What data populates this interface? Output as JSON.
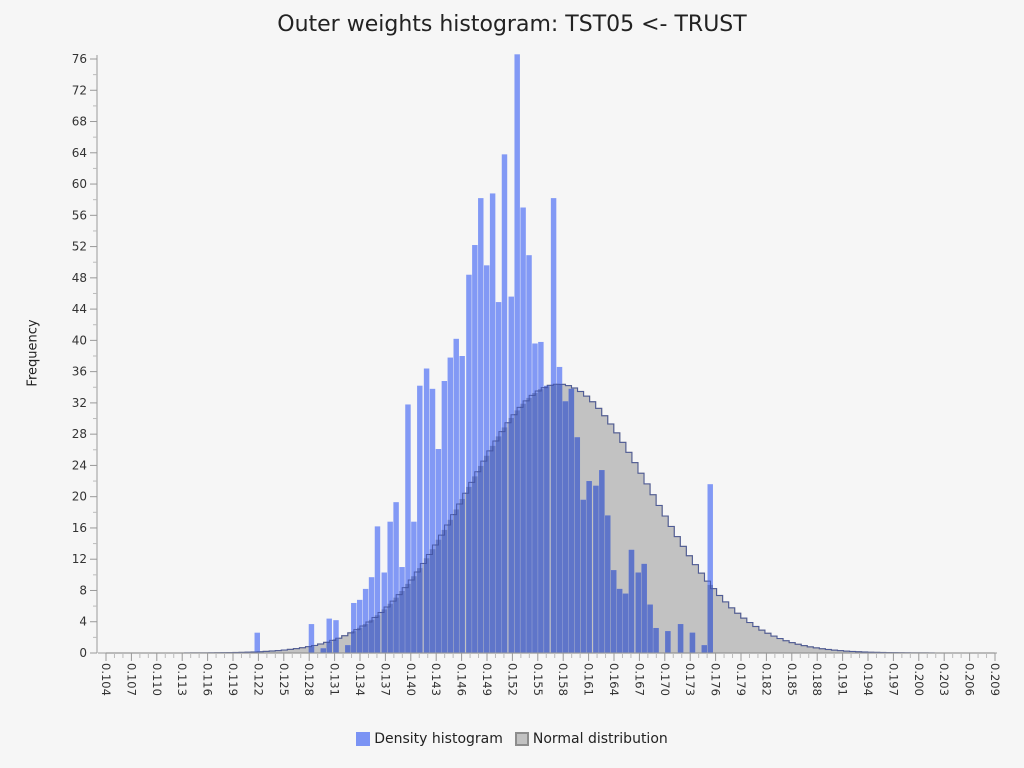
{
  "chart_data": {
    "type": "bar",
    "title": "Outer weights histogram: TST05 <- TRUST",
    "ylabel": "Frequency",
    "xlabel": "",
    "ylim": [
      0,
      76
    ],
    "xlim": [
      0.104,
      0.209
    ],
    "bin_width": 0.000714,
    "yticks": [
      "0",
      "4",
      "8",
      "12",
      "16",
      "20",
      "24",
      "28",
      "32",
      "36",
      "40",
      "44",
      "48",
      "52",
      "56",
      "60",
      "64",
      "68",
      "72",
      "76"
    ],
    "xticks": [
      "0.104",
      "0.107",
      "0.110",
      "0.113",
      "0.116",
      "0.119",
      "0.122",
      "0.125",
      "0.128",
      "0.131",
      "0.134",
      "0.137",
      "0.140",
      "0.143",
      "0.146",
      "0.149",
      "0.152",
      "0.155",
      "0.158",
      "0.161",
      "0.164",
      "0.167",
      "0.170",
      "0.173",
      "0.176",
      "0.179",
      "0.182",
      "0.185",
      "0.188",
      "0.191",
      "0.194",
      "0.197",
      "0.200",
      "0.203",
      "0.206",
      "0.209"
    ],
    "grid": false,
    "legend_position": "bottom",
    "colors": {
      "density": "#7b93f4",
      "overlap": "#5c71c4",
      "normal": "#c2c2c2",
      "normal_edge": "#8d8d8d",
      "overlap_edge": "#3e4f9b"
    },
    "series": [
      {
        "name": "Density histogram",
        "bins": [
          {
            "x": 0.1219,
            "y": 2.6
          },
          {
            "x": 0.1283,
            "y": 3.7
          },
          {
            "x": 0.1297,
            "y": 0.6
          },
          {
            "x": 0.1304,
            "y": 4.4
          },
          {
            "x": 0.1312,
            "y": 4.2
          },
          {
            "x": 0.1326,
            "y": 1.0
          },
          {
            "x": 0.1333,
            "y": 6.4
          },
          {
            "x": 0.134,
            "y": 6.8
          },
          {
            "x": 0.1347,
            "y": 8.2
          },
          {
            "x": 0.1354,
            "y": 9.7
          },
          {
            "x": 0.1361,
            "y": 16.2
          },
          {
            "x": 0.1369,
            "y": 10.3
          },
          {
            "x": 0.1376,
            "y": 16.8
          },
          {
            "x": 0.1383,
            "y": 19.3
          },
          {
            "x": 0.139,
            "y": 11.0
          },
          {
            "x": 0.1397,
            "y": 31.8
          },
          {
            "x": 0.1404,
            "y": 16.8
          },
          {
            "x": 0.1411,
            "y": 34.2
          },
          {
            "x": 0.1419,
            "y": 36.4
          },
          {
            "x": 0.1426,
            "y": 33.8
          },
          {
            "x": 0.1433,
            "y": 26.1
          },
          {
            "x": 0.144,
            "y": 34.8
          },
          {
            "x": 0.1447,
            "y": 37.8
          },
          {
            "x": 0.1454,
            "y": 40.2
          },
          {
            "x": 0.1461,
            "y": 38.0
          },
          {
            "x": 0.1469,
            "y": 48.4
          },
          {
            "x": 0.1476,
            "y": 52.2
          },
          {
            "x": 0.1483,
            "y": 58.2
          },
          {
            "x": 0.149,
            "y": 49.6
          },
          {
            "x": 0.1497,
            "y": 58.8
          },
          {
            "x": 0.1504,
            "y": 44.9
          },
          {
            "x": 0.1511,
            "y": 63.8
          },
          {
            "x": 0.1519,
            "y": 45.6
          },
          {
            "x": 0.1526,
            "y": 76.6
          },
          {
            "x": 0.1533,
            "y": 57.0
          },
          {
            "x": 0.154,
            "y": 50.9
          },
          {
            "x": 0.1547,
            "y": 39.6
          },
          {
            "x": 0.1554,
            "y": 39.8
          },
          {
            "x": 0.1561,
            "y": 34.2
          },
          {
            "x": 0.1569,
            "y": 58.2
          },
          {
            "x": 0.1576,
            "y": 36.6
          },
          {
            "x": 0.1583,
            "y": 32.2
          },
          {
            "x": 0.159,
            "y": 33.8
          },
          {
            "x": 0.1597,
            "y": 27.6
          },
          {
            "x": 0.1604,
            "y": 19.6
          },
          {
            "x": 0.1611,
            "y": 22.0
          },
          {
            "x": 0.1619,
            "y": 21.4
          },
          {
            "x": 0.1626,
            "y": 23.4
          },
          {
            "x": 0.1633,
            "y": 17.6
          },
          {
            "x": 0.164,
            "y": 10.6
          },
          {
            "x": 0.1647,
            "y": 8.2
          },
          {
            "x": 0.1654,
            "y": 7.6
          },
          {
            "x": 0.1661,
            "y": 13.2
          },
          {
            "x": 0.1669,
            "y": 10.3
          },
          {
            "x": 0.1676,
            "y": 11.4
          },
          {
            "x": 0.1683,
            "y": 6.2
          },
          {
            "x": 0.169,
            "y": 3.2
          },
          {
            "x": 0.1704,
            "y": 2.8
          },
          {
            "x": 0.1719,
            "y": 3.7
          },
          {
            "x": 0.1733,
            "y": 2.6
          },
          {
            "x": 0.1747,
            "y": 1.0
          },
          {
            "x": 0.1754,
            "y": 21.6
          }
        ]
      },
      {
        "name": "Normal distribution",
        "mean": 0.1575,
        "sd": 0.0108,
        "peak": 34.4
      }
    ]
  }
}
